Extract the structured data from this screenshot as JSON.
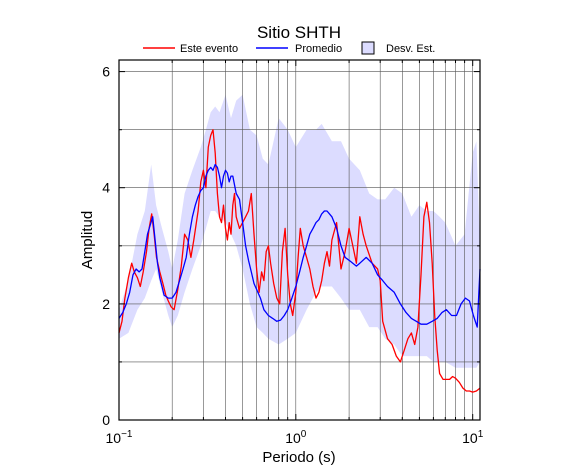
{
  "chart_data": {
    "type": "line",
    "title": "Sitio SHTH",
    "xlabel": "Periodo (s)",
    "ylabel": "Amplitud",
    "x_scale": "log",
    "xlim": [
      0.1,
      11
    ],
    "ylim": [
      0,
      6.2
    ],
    "grid": true,
    "legend_position": "top",
    "x_ticks": [
      {
        "value": 0.1,
        "base": "10",
        "exp": "−1"
      },
      {
        "value": 1,
        "base": "10",
        "exp": "0"
      },
      {
        "value": 10,
        "base": "10",
        "exp": "1"
      }
    ],
    "y_ticks": [
      {
        "value": 0,
        "label": "0"
      },
      {
        "value": 2,
        "label": "2"
      },
      {
        "value": 4,
        "label": "4"
      },
      {
        "value": 6,
        "label": "6"
      }
    ],
    "legend": [
      {
        "label": "Este evento",
        "kind": "line",
        "color": "#ff0000"
      },
      {
        "label": "Promedio",
        "kind": "line",
        "color": "#0000ff"
      },
      {
        "label": "Desv. Est.",
        "kind": "box",
        "color": "#dcdcff"
      }
    ],
    "band": {
      "name": "Desv. Est.",
      "color": "#dcdcff",
      "x": [
        0.1,
        0.113,
        0.127,
        0.14,
        0.152,
        0.162,
        0.175,
        0.19,
        0.2,
        0.215,
        0.235,
        0.26,
        0.29,
        0.31,
        0.33,
        0.35,
        0.37,
        0.4,
        0.43,
        0.46,
        0.5,
        0.55,
        0.6,
        0.65,
        0.7,
        0.8,
        0.9,
        1.0,
        1.15,
        1.3,
        1.4,
        1.6,
        1.8,
        2.0,
        2.3,
        2.6,
        2.9,
        3.2,
        3.6,
        4.0,
        4.5,
        5.0,
        5.5,
        6.0,
        6.5,
        7.0,
        8.0,
        9.0,
        10.0,
        10.5,
        11.0
      ],
      "upper": [
        1.9,
        2.4,
        3.2,
        3.6,
        4.4,
        3.7,
        3.3,
        2.9,
        2.6,
        3.1,
        3.9,
        4.3,
        4.7,
        5.0,
        5.3,
        5.4,
        5.3,
        5.6,
        5.2,
        5.5,
        5.6,
        5.0,
        4.9,
        4.5,
        4.4,
        5.2,
        5.0,
        4.7,
        5.0,
        5.0,
        5.1,
        4.8,
        4.8,
        4.5,
        4.3,
        3.9,
        3.8,
        3.8,
        4.0,
        3.9,
        3.5,
        3.7,
        3.6,
        3.6,
        3.5,
        3.4,
        3.0,
        3.2,
        4.6,
        4.8,
        3.0
      ],
      "lower": [
        1.4,
        1.5,
        1.9,
        2.1,
        2.4,
        2.6,
        2.2,
        1.8,
        1.6,
        1.8,
        2.2,
        2.6,
        3.0,
        3.3,
        3.6,
        3.6,
        3.5,
        3.4,
        3.2,
        3.0,
        2.6,
        2.0,
        1.6,
        1.5,
        1.4,
        1.3,
        1.4,
        1.5,
        1.9,
        2.2,
        2.3,
        2.3,
        2.1,
        1.9,
        1.9,
        1.6,
        1.6,
        1.4,
        1.3,
        1.1,
        1.1,
        1.1,
        1.1,
        1.0,
        1.0,
        1.0,
        0.9,
        0.9,
        0.9,
        0.9,
        1.0
      ]
    },
    "series": [
      {
        "name": "Este evento",
        "color": "#ff0000",
        "x": [
          0.1,
          0.104,
          0.108,
          0.113,
          0.118,
          0.122,
          0.127,
          0.132,
          0.137,
          0.143,
          0.148,
          0.153,
          0.158,
          0.163,
          0.17,
          0.177,
          0.184,
          0.19,
          0.197,
          0.205,
          0.215,
          0.225,
          0.235,
          0.245,
          0.255,
          0.265,
          0.28,
          0.29,
          0.3,
          0.31,
          0.32,
          0.33,
          0.34,
          0.35,
          0.36,
          0.37,
          0.38,
          0.39,
          0.4,
          0.41,
          0.42,
          0.43,
          0.44,
          0.45,
          0.46,
          0.48,
          0.5,
          0.52,
          0.54,
          0.56,
          0.58,
          0.6,
          0.62,
          0.64,
          0.66,
          0.68,
          0.7,
          0.72,
          0.75,
          0.78,
          0.81,
          0.84,
          0.87,
          0.9,
          0.93,
          0.96,
          1.0,
          1.03,
          1.06,
          1.1,
          1.15,
          1.2,
          1.25,
          1.3,
          1.35,
          1.4,
          1.45,
          1.5,
          1.55,
          1.6,
          1.7,
          1.8,
          1.9,
          2.0,
          2.1,
          2.2,
          2.3,
          2.4,
          2.5,
          2.7,
          2.9,
          3.0,
          3.1,
          3.3,
          3.5,
          3.7,
          3.9,
          4.1,
          4.3,
          4.5,
          4.7,
          4.9,
          5.1,
          5.3,
          5.5,
          5.7,
          5.9,
          6.1,
          6.3,
          6.5,
          6.8,
          7.1,
          7.4,
          7.7,
          8.0,
          8.4,
          8.8,
          9.2,
          9.6,
          10.0,
          10.5,
          11.0
        ],
        "y": [
          1.5,
          1.7,
          2.1,
          2.45,
          2.7,
          2.55,
          2.45,
          2.3,
          2.55,
          2.9,
          3.3,
          3.55,
          3.2,
          2.8,
          2.55,
          2.35,
          2.15,
          2.05,
          1.95,
          1.9,
          2.25,
          2.65,
          3.2,
          3.1,
          2.8,
          3.1,
          3.6,
          4.1,
          4.3,
          4.0,
          4.7,
          4.9,
          5.0,
          4.6,
          3.9,
          3.5,
          3.4,
          3.7,
          3.3,
          3.1,
          3.4,
          3.2,
          3.7,
          3.9,
          3.5,
          3.3,
          3.4,
          3.5,
          3.6,
          3.9,
          3.2,
          2.6,
          2.2,
          2.55,
          2.4,
          2.9,
          3.0,
          2.7,
          2.35,
          2.1,
          2.0,
          2.9,
          3.3,
          2.5,
          2.0,
          1.8,
          2.2,
          2.8,
          3.3,
          3.0,
          2.8,
          2.6,
          2.3,
          2.1,
          2.2,
          2.4,
          2.7,
          2.9,
          2.65,
          3.1,
          3.4,
          2.6,
          2.9,
          3.3,
          3.0,
          2.7,
          3.5,
          3.2,
          3.0,
          2.7,
          2.6,
          2.4,
          1.7,
          1.4,
          1.3,
          1.1,
          1.0,
          1.2,
          1.4,
          1.5,
          1.3,
          1.6,
          2.5,
          3.5,
          3.75,
          3.4,
          2.7,
          1.8,
          1.2,
          0.8,
          0.7,
          0.7,
          0.7,
          0.75,
          0.72,
          0.65,
          0.55,
          0.5,
          0.5,
          0.48,
          0.5,
          0.55
        ]
      },
      {
        "name": "Promedio",
        "color": "#0000ff",
        "x": [
          0.1,
          0.105,
          0.11,
          0.115,
          0.12,
          0.125,
          0.13,
          0.135,
          0.14,
          0.145,
          0.15,
          0.155,
          0.16,
          0.165,
          0.17,
          0.175,
          0.18,
          0.19,
          0.2,
          0.21,
          0.22,
          0.23,
          0.24,
          0.25,
          0.26,
          0.27,
          0.28,
          0.29,
          0.3,
          0.31,
          0.32,
          0.33,
          0.34,
          0.35,
          0.36,
          0.37,
          0.38,
          0.39,
          0.4,
          0.41,
          0.42,
          0.43,
          0.44,
          0.46,
          0.48,
          0.5,
          0.52,
          0.54,
          0.56,
          0.58,
          0.6,
          0.63,
          0.66,
          0.7,
          0.74,
          0.78,
          0.82,
          0.86,
          0.9,
          0.95,
          1.0,
          1.05,
          1.1,
          1.15,
          1.2,
          1.25,
          1.3,
          1.35,
          1.4,
          1.45,
          1.5,
          1.55,
          1.6,
          1.7,
          1.8,
          1.9,
          2.0,
          2.1,
          2.2,
          2.3,
          2.5,
          2.7,
          2.9,
          3.1,
          3.3,
          3.6,
          3.9,
          4.2,
          4.5,
          4.8,
          5.1,
          5.5,
          5.9,
          6.3,
          6.7,
          7.1,
          7.6,
          8.1,
          8.6,
          9.1,
          9.6,
          10.1,
          10.6,
          11.0
        ],
        "y": [
          1.75,
          1.85,
          2.0,
          2.2,
          2.5,
          2.6,
          2.55,
          2.6,
          2.9,
          3.2,
          3.35,
          3.5,
          3.1,
          2.7,
          2.45,
          2.3,
          2.15,
          2.1,
          2.1,
          2.2,
          2.4,
          2.6,
          2.8,
          3.2,
          3.5,
          3.7,
          3.85,
          3.95,
          4.0,
          4.2,
          4.3,
          4.35,
          4.3,
          4.4,
          4.35,
          4.2,
          4.0,
          4.2,
          4.3,
          4.25,
          4.1,
          4.2,
          4.2,
          3.9,
          3.8,
          3.4,
          3.0,
          2.75,
          2.55,
          2.35,
          2.25,
          2.1,
          1.9,
          1.8,
          1.75,
          1.7,
          1.72,
          1.8,
          1.9,
          2.1,
          2.3,
          2.55,
          2.8,
          3.0,
          3.2,
          3.3,
          3.4,
          3.45,
          3.55,
          3.6,
          3.6,
          3.55,
          3.5,
          3.3,
          3.0,
          2.8,
          2.75,
          2.7,
          2.65,
          2.7,
          2.8,
          2.7,
          2.5,
          2.4,
          2.3,
          2.2,
          2.0,
          1.85,
          1.75,
          1.7,
          1.65,
          1.65,
          1.7,
          1.75,
          1.85,
          1.9,
          1.8,
          1.8,
          2.0,
          2.1,
          2.05,
          1.8,
          1.6,
          2.6
        ]
      }
    ]
  }
}
